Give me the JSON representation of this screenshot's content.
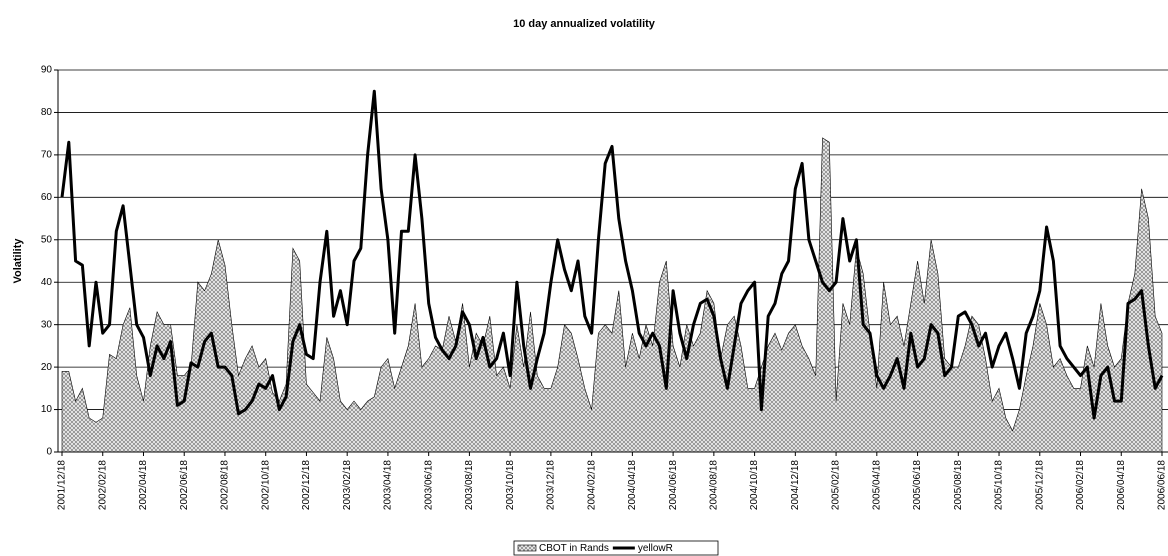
{
  "chart_data": {
    "type": "area-line",
    "title": "10 day annualized volatility",
    "y_label": "Volatility",
    "categories": [
      "2001/12/18",
      null,
      null,
      null,
      null,
      null,
      "2002/02/18",
      null,
      null,
      null,
      null,
      null,
      "2002/04/18",
      null,
      null,
      null,
      null,
      null,
      "2002/06/18",
      null,
      null,
      null,
      null,
      null,
      "2002/08/18",
      null,
      null,
      null,
      null,
      null,
      "2002/10/18",
      null,
      null,
      null,
      null,
      null,
      "2002/12/18",
      null,
      null,
      null,
      null,
      null,
      "2003/02/18",
      null,
      null,
      null,
      null,
      null,
      "2003/04/18",
      null,
      null,
      null,
      null,
      null,
      "2003/06/18",
      null,
      null,
      null,
      null,
      null,
      "2003/08/18",
      null,
      null,
      null,
      null,
      null,
      "2003/10/18",
      null,
      null,
      null,
      null,
      null,
      "2003/12/18",
      null,
      null,
      null,
      null,
      null,
      "2004/02/18",
      null,
      null,
      null,
      null,
      null,
      "2004/04/18",
      null,
      null,
      null,
      null,
      null,
      "2004/06/18",
      null,
      null,
      null,
      null,
      null,
      "2004/08/18",
      null,
      null,
      null,
      null,
      null,
      "2004/10/18",
      null,
      null,
      null,
      null,
      null,
      "2004/12/18",
      null,
      null,
      null,
      null,
      null,
      "2005/02/18",
      null,
      null,
      null,
      null,
      null,
      "2005/04/18",
      null,
      null,
      null,
      null,
      null,
      "2005/06/18",
      null,
      null,
      null,
      null,
      null,
      "2005/08/18",
      null,
      null,
      null,
      null,
      null,
      "2005/10/18",
      null,
      null,
      null,
      null,
      null,
      "2005/12/18",
      null,
      null,
      null,
      null,
      null,
      "2006/02/18",
      null,
      null,
      null,
      null,
      null,
      "2006/04/18",
      null,
      null,
      null,
      null,
      null,
      "2006/06/18"
    ],
    "series": [
      {
        "name": "CBOT in Rands",
        "kind": "area",
        "color": "#8c8c8c",
        "values": [
          19,
          19,
          12,
          15,
          8,
          7,
          8,
          23,
          22,
          30,
          34,
          18,
          12,
          25,
          33,
          30,
          30,
          18,
          18,
          20,
          40,
          38,
          42,
          50,
          44,
          30,
          18,
          22,
          25,
          20,
          22,
          14,
          12,
          16,
          48,
          45,
          16,
          14,
          12,
          27,
          22,
          12,
          10,
          12,
          10,
          12,
          13,
          20,
          22,
          15,
          20,
          25,
          35,
          20,
          22,
          25,
          24,
          32,
          26,
          35,
          20,
          28,
          25,
          32,
          18,
          20,
          15,
          30,
          20,
          33,
          18,
          15,
          15,
          20,
          30,
          28,
          22,
          15,
          10,
          28,
          30,
          28,
          38,
          20,
          28,
          22,
          30,
          25,
          40,
          45,
          25,
          20,
          30,
          25,
          28,
          38,
          35,
          22,
          30,
          32,
          25,
          15,
          15,
          20,
          25,
          28,
          24,
          28,
          30,
          25,
          22,
          18,
          74,
          73,
          12,
          35,
          30,
          48,
          42,
          28,
          15,
          40,
          30,
          32,
          25,
          35,
          45,
          35,
          50,
          42,
          22,
          20,
          20,
          25,
          32,
          30,
          22,
          12,
          15,
          8,
          5,
          10,
          18,
          25,
          35,
          30,
          20,
          22,
          18,
          15,
          15,
          25,
          20,
          35,
          25,
          20,
          22,
          35,
          42,
          62,
          55,
          32,
          28
        ]
      },
      {
        "name": "yellowR",
        "kind": "line",
        "color": "#000000",
        "values": [
          60,
          73,
          45,
          44,
          25,
          40,
          28,
          30,
          52,
          58,
          44,
          30,
          27,
          18,
          25,
          22,
          26,
          11,
          12,
          21,
          20,
          26,
          28,
          20,
          20,
          18,
          9,
          10,
          12,
          16,
          15,
          18,
          10,
          13,
          26,
          30,
          23,
          22,
          40,
          52,
          32,
          38,
          30,
          45,
          48,
          70,
          85,
          62,
          50,
          28,
          52,
          52,
          70,
          55,
          35,
          27,
          24,
          22,
          25,
          33,
          30,
          22,
          27,
          20,
          22,
          28,
          18,
          40,
          25,
          15,
          22,
          28,
          40,
          50,
          43,
          38,
          45,
          32,
          28,
          50,
          68,
          72,
          55,
          45,
          38,
          28,
          25,
          28,
          25,
          15,
          38,
          28,
          22,
          30,
          35,
          36,
          32,
          22,
          15,
          25,
          35,
          38,
          40,
          10,
          32,
          35,
          42,
          45,
          62,
          68,
          50,
          45,
          40,
          38,
          40,
          55,
          45,
          50,
          30,
          28,
          18,
          15,
          18,
          22,
          15,
          28,
          20,
          22,
          30,
          28,
          18,
          20,
          32,
          33,
          30,
          25,
          28,
          20,
          25,
          28,
          22,
          15,
          28,
          32,
          38,
          53,
          45,
          25,
          22,
          20,
          18,
          20,
          8,
          18,
          20,
          12,
          12,
          35,
          36,
          38,
          25,
          15,
          18
        ]
      }
    ],
    "ylim": [
      0,
      90
    ],
    "yticks": [
      0,
      10,
      20,
      30,
      40,
      50,
      60,
      70,
      80,
      90
    ],
    "grid": true,
    "legend": "bottom"
  }
}
